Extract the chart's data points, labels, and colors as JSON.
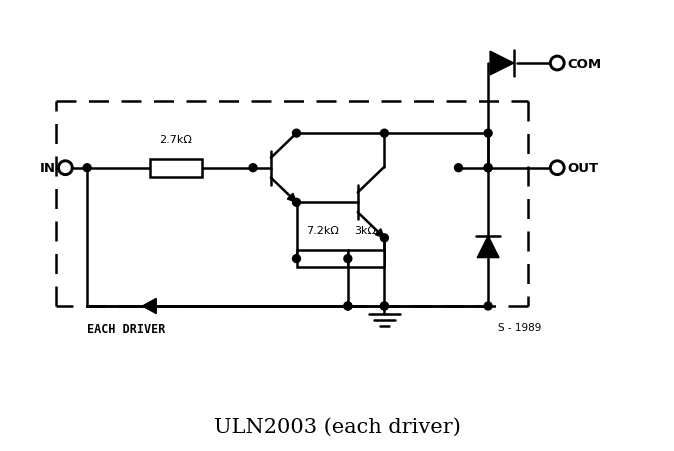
{
  "title": "ULN2003 (each driver)",
  "title_fontsize": 15,
  "title_font": "serif",
  "background_color": "#ffffff",
  "line_color": "#000000",
  "line_width": 1.8,
  "labels": {
    "IN": "IN",
    "COM": "COM",
    "OUT": "OUT",
    "R1": "2.7kΩ",
    "R2": "7.2kΩ",
    "R3": "3kΩ",
    "each_driver": "EACH DRIVER",
    "year": "S - 1989"
  },
  "figsize": [
    6.74,
    4.52
  ],
  "dpi": 100
}
